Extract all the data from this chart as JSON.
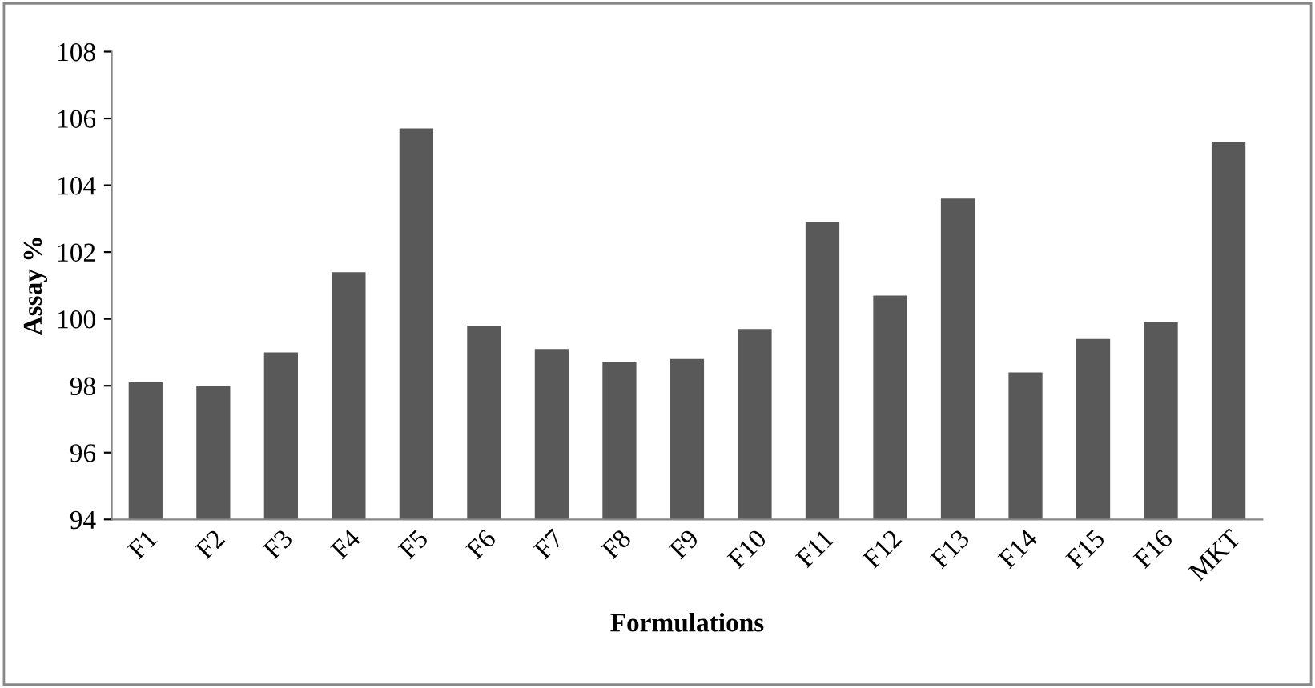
{
  "chart_data": {
    "type": "bar",
    "xlabel": "Formulations",
    "ylabel": "Assay %",
    "categories": [
      "F1",
      "F2",
      "F3",
      "F4",
      "F5",
      "F6",
      "F7",
      "F8",
      "F9",
      "F10",
      "F11",
      "F12",
      "F13",
      "F14",
      "F15",
      "F16",
      "MKT"
    ],
    "values": [
      98.1,
      98.0,
      99.0,
      101.4,
      105.7,
      99.8,
      99.1,
      98.7,
      98.8,
      99.7,
      102.9,
      100.7,
      103.6,
      98.4,
      99.4,
      99.9,
      105.3
    ],
    "color": "#595959",
    "ylim": [
      94,
      108
    ],
    "yticks": [
      94,
      96,
      98,
      100,
      102,
      104,
      106,
      108
    ],
    "grid": false,
    "legend": false
  }
}
